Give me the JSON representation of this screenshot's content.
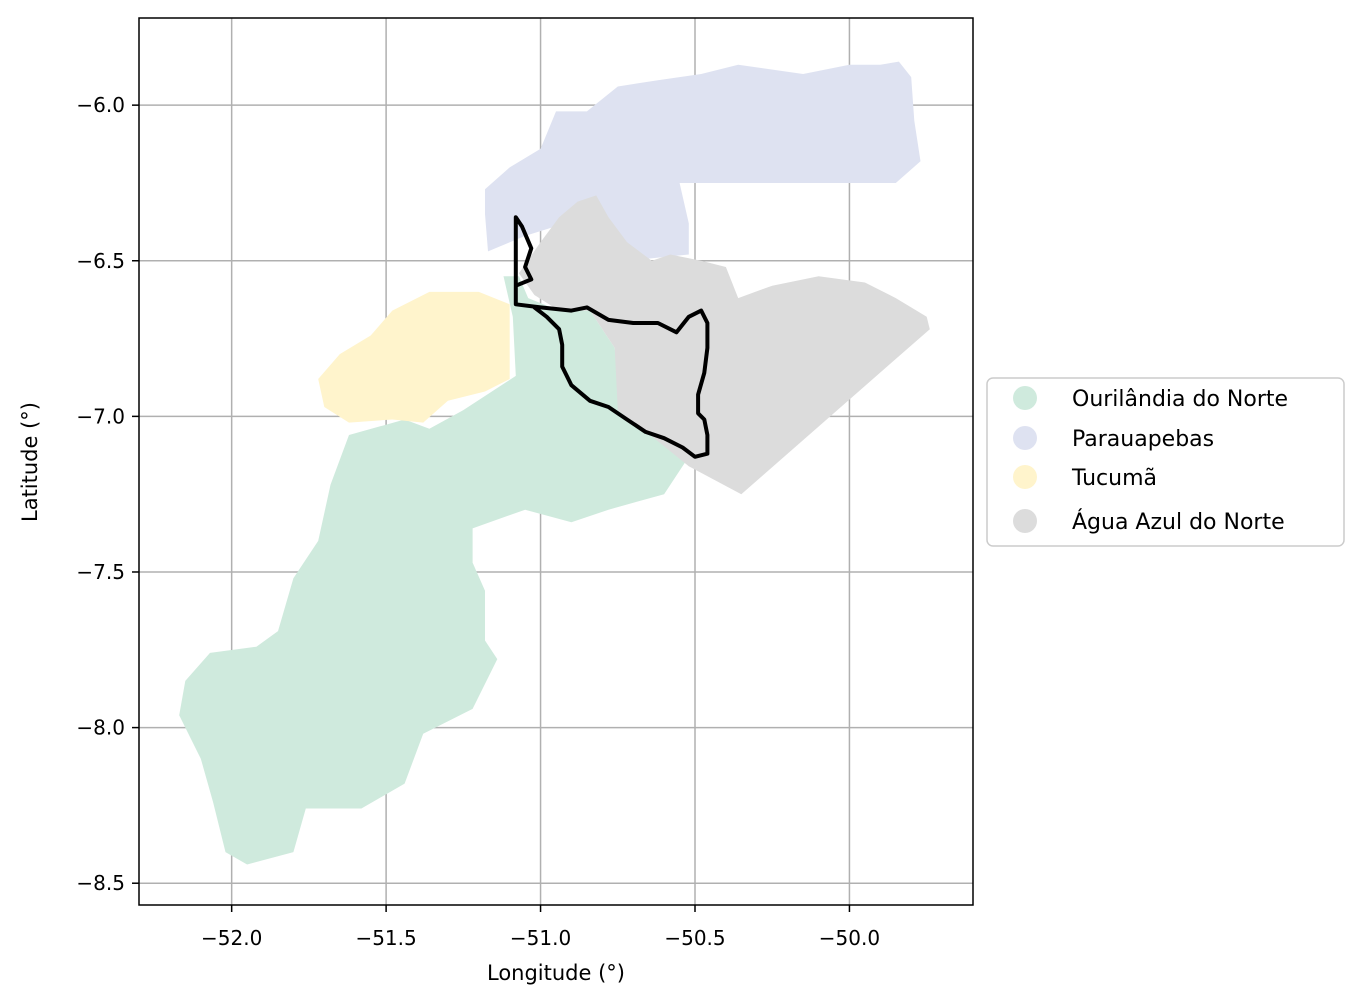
{
  "chart_data": {
    "type": "map",
    "xlabel": "Longitude (°)",
    "ylabel": "Latitude (°)",
    "xlim": [
      -52.3,
      -49.6
    ],
    "ylim": [
      -8.57,
      -5.72
    ],
    "x_ticks": [
      -52.0,
      -51.5,
      -51.0,
      -50.5,
      -50.0
    ],
    "x_tick_labels": [
      "−52.0",
      "−51.5",
      "−51.0",
      "−50.5",
      "−50.0"
    ],
    "y_ticks": [
      -6.0,
      -6.5,
      -7.0,
      -7.5,
      -8.0,
      -8.5
    ],
    "y_tick_labels": [
      "−6.0",
      "−6.5",
      "−7.0",
      "−7.5",
      "−8.0",
      "−8.5"
    ],
    "grid": true,
    "legend_placement": "right",
    "regions": [
      {
        "name": "Ourilândia do Norte",
        "color": "#cfeadd",
        "outline": [
          [
            -51.07,
            -6.55
          ],
          [
            -51.04,
            -6.62
          ],
          [
            -50.94,
            -6.66
          ],
          [
            -50.84,
            -6.66
          ],
          [
            -50.76,
            -6.78
          ],
          [
            -50.74,
            -6.98
          ],
          [
            -50.62,
            -7.07
          ],
          [
            -50.52,
            -7.13
          ],
          [
            -50.6,
            -7.25
          ],
          [
            -50.78,
            -7.3
          ],
          [
            -50.9,
            -7.34
          ],
          [
            -51.05,
            -7.3
          ],
          [
            -51.22,
            -7.36
          ],
          [
            -51.22,
            -7.47
          ],
          [
            -51.18,
            -7.56
          ],
          [
            -51.18,
            -7.72
          ],
          [
            -51.14,
            -7.78
          ],
          [
            -51.22,
            -7.94
          ],
          [
            -51.38,
            -8.02
          ],
          [
            -51.44,
            -8.18
          ],
          [
            -51.58,
            -8.26
          ],
          [
            -51.76,
            -8.26
          ],
          [
            -51.8,
            -8.4
          ],
          [
            -51.95,
            -8.44
          ],
          [
            -52.02,
            -8.4
          ],
          [
            -52.06,
            -8.24
          ],
          [
            -52.1,
            -8.1
          ],
          [
            -52.17,
            -7.96
          ],
          [
            -52.15,
            -7.85
          ],
          [
            -52.07,
            -7.76
          ],
          [
            -51.92,
            -7.74
          ],
          [
            -51.85,
            -7.69
          ],
          [
            -51.8,
            -7.52
          ],
          [
            -51.72,
            -7.4
          ],
          [
            -51.68,
            -7.22
          ],
          [
            -51.62,
            -7.06
          ],
          [
            -51.44,
            -7.01
          ],
          [
            -51.36,
            -7.04
          ],
          [
            -51.25,
            -6.98
          ],
          [
            -51.08,
            -6.87
          ],
          [
            -51.09,
            -6.68
          ],
          [
            -51.12,
            -6.55
          ]
        ]
      },
      {
        "name": "Parauapebas",
        "color": "#dee2f1",
        "outline": [
          [
            -51.1,
            -6.2
          ],
          [
            -51.0,
            -6.14
          ],
          [
            -50.95,
            -6.02
          ],
          [
            -50.85,
            -6.02
          ],
          [
            -50.75,
            -5.94
          ],
          [
            -50.62,
            -5.92
          ],
          [
            -50.48,
            -5.9
          ],
          [
            -50.36,
            -5.87
          ],
          [
            -50.15,
            -5.9
          ],
          [
            -50.0,
            -5.87
          ],
          [
            -49.9,
            -5.87
          ],
          [
            -49.84,
            -5.86
          ],
          [
            -49.8,
            -5.91
          ],
          [
            -49.79,
            -6.05
          ],
          [
            -49.77,
            -6.18
          ],
          [
            -49.85,
            -6.25
          ],
          [
            -50.55,
            -6.25
          ],
          [
            -50.52,
            -6.38
          ],
          [
            -50.52,
            -6.48
          ],
          [
            -50.72,
            -6.5
          ],
          [
            -50.86,
            -6.46
          ],
          [
            -50.92,
            -6.38
          ],
          [
            -51.05,
            -6.42
          ],
          [
            -51.17,
            -6.47
          ],
          [
            -51.18,
            -6.35
          ],
          [
            -51.18,
            -6.27
          ]
        ]
      },
      {
        "name": "Tucumã",
        "color": "#fff4cc",
        "outline": [
          [
            -51.1,
            -6.64
          ],
          [
            -51.1,
            -6.88
          ],
          [
            -51.18,
            -6.92
          ],
          [
            -51.3,
            -6.95
          ],
          [
            -51.38,
            -7.02
          ],
          [
            -51.48,
            -7.01
          ],
          [
            -51.62,
            -7.02
          ],
          [
            -51.7,
            -6.97
          ],
          [
            -51.72,
            -6.88
          ],
          [
            -51.65,
            -6.8
          ],
          [
            -51.55,
            -6.74
          ],
          [
            -51.48,
            -6.66
          ],
          [
            -51.36,
            -6.6
          ],
          [
            -51.2,
            -6.6
          ]
        ]
      },
      {
        "name": "Água Azul do Norte",
        "color": "#dcdcdc",
        "outline": [
          [
            -51.07,
            -6.54
          ],
          [
            -51.0,
            -6.44
          ],
          [
            -50.94,
            -6.36
          ],
          [
            -50.88,
            -6.31
          ],
          [
            -50.82,
            -6.29
          ],
          [
            -50.78,
            -6.36
          ],
          [
            -50.72,
            -6.44
          ],
          [
            -50.64,
            -6.5
          ],
          [
            -50.58,
            -6.48
          ],
          [
            -50.48,
            -6.5
          ],
          [
            -50.4,
            -6.52
          ],
          [
            -50.36,
            -6.62
          ],
          [
            -50.25,
            -6.58
          ],
          [
            -50.1,
            -6.55
          ],
          [
            -49.95,
            -6.57
          ],
          [
            -49.85,
            -6.62
          ],
          [
            -49.75,
            -6.68
          ],
          [
            -49.74,
            -6.72
          ],
          [
            -50.35,
            -7.25
          ],
          [
            -50.52,
            -7.16
          ],
          [
            -50.62,
            -7.08
          ],
          [
            -50.75,
            -6.98
          ],
          [
            -50.76,
            -6.78
          ],
          [
            -50.84,
            -6.66
          ],
          [
            -50.94,
            -6.66
          ],
          [
            -51.02,
            -6.61
          ]
        ]
      }
    ],
    "boundary": {
      "color": "#000000",
      "line": [
        [
          -51.08,
          -6.63
        ],
        [
          -51.08,
          -6.36
        ],
        [
          -51.06,
          -6.39
        ],
        [
          -51.03,
          -6.46
        ],
        [
          -51.05,
          -6.52
        ],
        [
          -51.03,
          -6.56
        ],
        [
          -51.08,
          -6.58
        ],
        [
          -51.08,
          -6.64
        ],
        [
          -51.0,
          -6.65
        ],
        [
          -50.9,
          -6.66
        ],
        [
          -50.85,
          -6.65
        ],
        [
          -50.78,
          -6.69
        ],
        [
          -50.7,
          -6.7
        ],
        [
          -50.62,
          -6.7
        ],
        [
          -50.56,
          -6.73
        ],
        [
          -50.52,
          -6.68
        ],
        [
          -50.48,
          -6.66
        ],
        [
          -50.46,
          -6.7
        ],
        [
          -50.46,
          -6.78
        ],
        [
          -50.47,
          -6.86
        ],
        [
          -50.49,
          -6.93
        ],
        [
          -50.49,
          -6.99
        ],
        [
          -50.47,
          -7.01
        ],
        [
          -50.46,
          -7.06
        ],
        [
          -50.46,
          -7.12
        ],
        [
          -50.5,
          -7.13
        ],
        [
          -50.54,
          -7.1
        ],
        [
          -50.6,
          -7.07
        ],
        [
          -50.66,
          -7.05
        ],
        [
          -50.72,
          -7.01
        ],
        [
          -50.78,
          -6.97
        ],
        [
          -50.84,
          -6.95
        ],
        [
          -50.9,
          -6.9
        ],
        [
          -50.93,
          -6.84
        ],
        [
          -50.93,
          -6.77
        ],
        [
          -50.94,
          -6.72
        ],
        [
          -50.98,
          -6.68
        ],
        [
          -51.02,
          -6.65
        ]
      ]
    },
    "legend": [
      {
        "label": "Ourilândia do Norte",
        "color": "#cfeadd"
      },
      {
        "label": "Parauapebas",
        "color": "#dee2f1"
      },
      {
        "label": "Tucumã",
        "color": "#fff4cc"
      },
      {
        "label": "Água Azul do Norte",
        "color": "#dcdcdc"
      }
    ]
  }
}
